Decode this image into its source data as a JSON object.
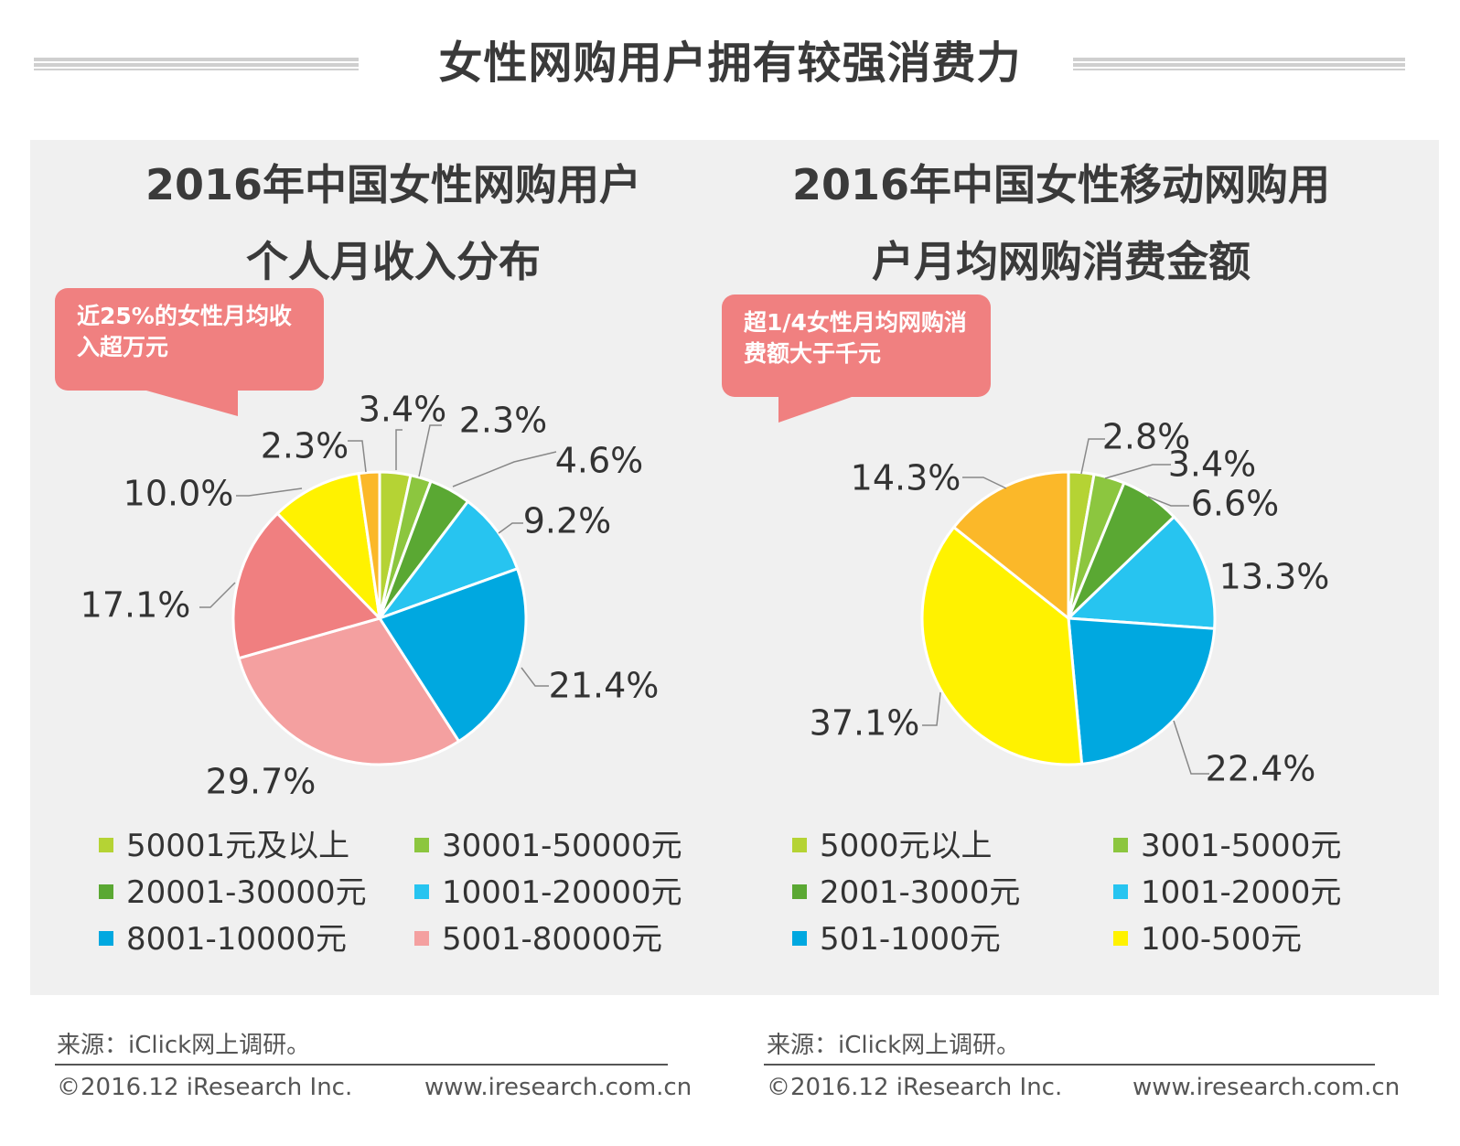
{
  "page_title": "女性网购用户拥有较强消费力",
  "charts": [
    {
      "title_line1": "2016年中国女性网购用户",
      "title_line2": "个人月收入分布",
      "callout": "近25%的女性月均收入超万元",
      "source": "来源：iClick网上调研。",
      "copyright": "©2016.12 iResearch Inc.",
      "website": "www.iresearch.com.cn"
    },
    {
      "title_line1": "2016年中国女性移动网购用",
      "title_line2": "户月均网购消费金额",
      "callout": "超1/4女性月均网购消费额大于千元",
      "source": "来源：iClick网上调研。",
      "copyright": "©2016.12 iResearch Inc.",
      "website": "www.iresearch.com.cn"
    }
  ],
  "chart_data": [
    {
      "type": "pie",
      "title": "2016年中国女性网购用户个人月收入分布",
      "start_direction": "12 o'clock",
      "order": "clockwise",
      "legend_position": "bottom",
      "slices": [
        {
          "label": "50001元及以上",
          "value": 3.4,
          "value_label": "3.4%",
          "color": "#b5d334"
        },
        {
          "label": "30001-50000元",
          "value": 2.3,
          "value_label": "2.3%",
          "color": "#8cc63f"
        },
        {
          "label": "20001-30000元",
          "value": 4.6,
          "value_label": "4.6%",
          "color": "#5aa833"
        },
        {
          "label": "10001-20000元",
          "value": 9.2,
          "value_label": "9.2%",
          "color": "#27c4f0"
        },
        {
          "label": "8001-10000元",
          "value": 21.4,
          "value_label": "21.4%",
          "color": "#00a8e0"
        },
        {
          "label": "5001-80000元",
          "value": 29.7,
          "value_label": "29.7%",
          "color": "#f4a0a0"
        },
        {
          "label": "",
          "value": 17.1,
          "value_label": "17.1%",
          "color": "#f07f80"
        },
        {
          "label": "",
          "value": 10.0,
          "value_label": "10.0%",
          "color": "#fff200"
        },
        {
          "label": "",
          "value": 2.3,
          "value_label": "2.3%",
          "color": "#fbb829"
        }
      ]
    },
    {
      "type": "pie",
      "title": "2016年中国女性移动网购用户月均网购消费金额",
      "start_direction": "12 o'clock",
      "order": "clockwise",
      "legend_position": "bottom",
      "slices": [
        {
          "label": "5000元以上",
          "value": 2.8,
          "value_label": "2.8%",
          "color": "#b5d334"
        },
        {
          "label": "3001-5000元",
          "value": 3.4,
          "value_label": "3.4%",
          "color": "#8cc63f"
        },
        {
          "label": "2001-3000元",
          "value": 6.6,
          "value_label": "6.6%",
          "color": "#5aa833"
        },
        {
          "label": "1001-2000元",
          "value": 13.3,
          "value_label": "13.3%",
          "color": "#27c4f0"
        },
        {
          "label": "501-1000元",
          "value": 22.4,
          "value_label": "22.4%",
          "color": "#00a8e0"
        },
        {
          "label": "100-500元",
          "value": 37.1,
          "value_label": "37.1%",
          "color": "#fff200"
        },
        {
          "label": "",
          "value": 14.3,
          "value_label": "14.3%",
          "color": "#fbb829"
        }
      ]
    }
  ]
}
